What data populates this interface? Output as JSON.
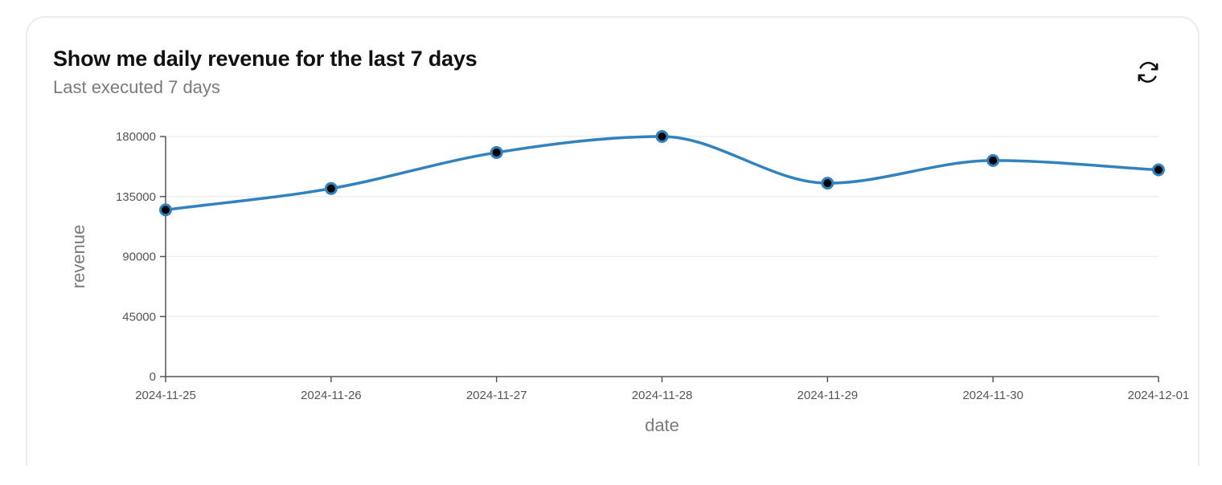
{
  "card": {
    "title": "Show me daily revenue for the last 7 days",
    "subtitle": "Last executed 7 days"
  },
  "icons": {
    "refresh": "refresh-icon"
  },
  "colors": {
    "line": "#3182bd",
    "point_fill": "#000000",
    "grid": "#eeeeee",
    "axis": "#555555"
  },
  "chart_data": {
    "type": "line",
    "title": "",
    "xlabel": "date",
    "ylabel": "revenue",
    "x": [
      "2024-11-25",
      "2024-11-26",
      "2024-11-27",
      "2024-11-28",
      "2024-11-29",
      "2024-11-30",
      "2024-12-01"
    ],
    "series": [
      {
        "values": [
          125000,
          141000,
          168000,
          180000,
          145000,
          162000,
          155000
        ]
      }
    ],
    "ylim": [
      0,
      180000
    ],
    "yticks": [
      0,
      45000,
      90000,
      135000,
      180000
    ],
    "grid": true,
    "interpolation": "smooth"
  }
}
